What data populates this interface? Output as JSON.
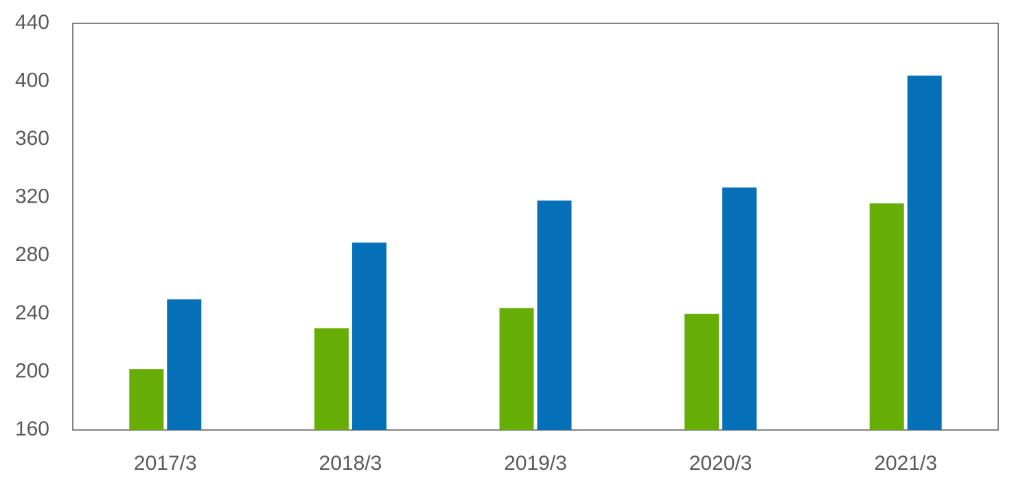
{
  "chart_data": {
    "type": "bar",
    "categories": [
      "2017/3",
      "2018/3",
      "2019/3",
      "2020/3",
      "2021/3"
    ],
    "series": [
      {
        "color": "#66ad06",
        "values": [
          202,
          230,
          244,
          240,
          316
        ]
      },
      {
        "color": "#0570b8",
        "values": [
          250,
          289,
          318,
          327,
          404
        ]
      }
    ],
    "ylim": [
      160,
      440
    ],
    "yticks": [
      160,
      200,
      240,
      280,
      320,
      360,
      400,
      440
    ],
    "grid": false
  }
}
